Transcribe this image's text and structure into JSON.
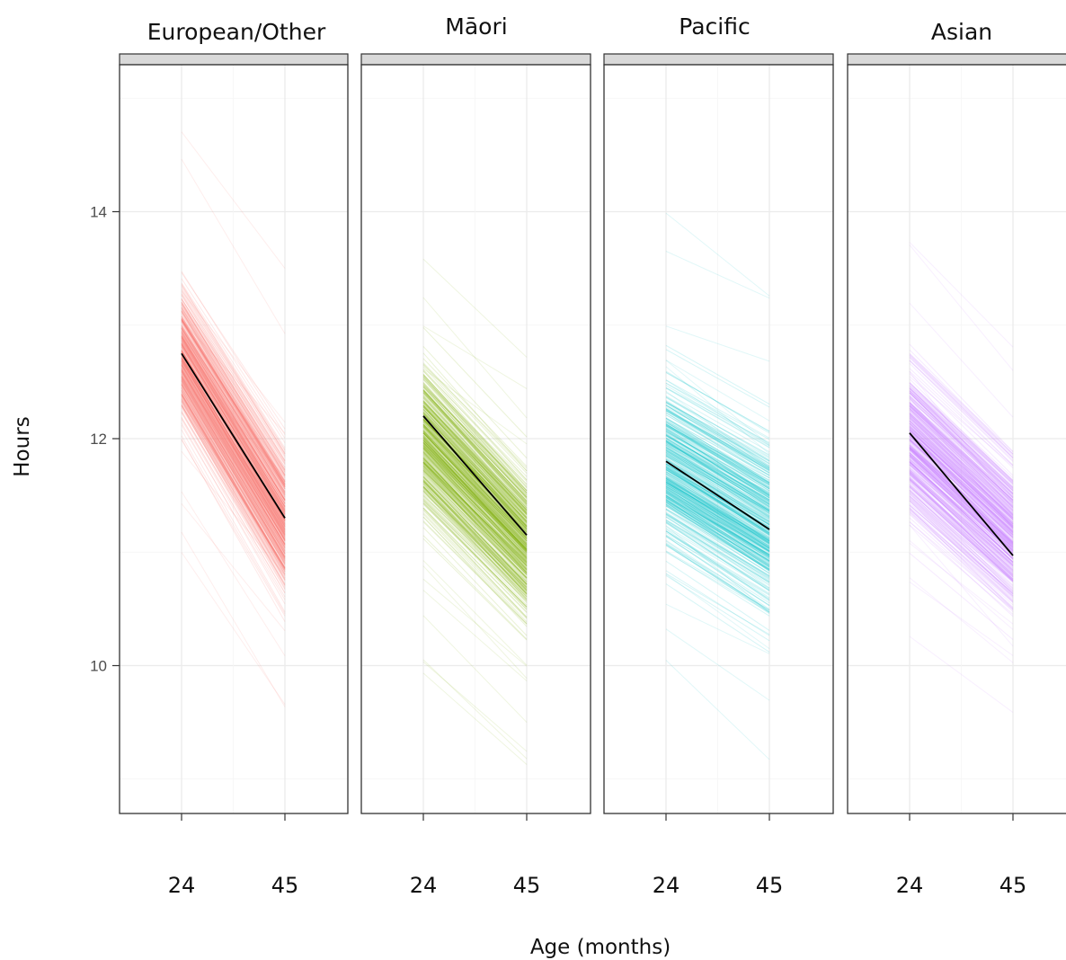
{
  "chart_data": {
    "type": "line",
    "xlabel": "Age (months)",
    "ylabel": "Hours",
    "x_ticks": [
      24,
      45
    ],
    "y_ticks": [
      10,
      12,
      14
    ],
    "ylim": [
      8.9,
      15.3
    ],
    "grid": true,
    "facets": [
      {
        "title": "European/Other",
        "color": "#F8766D",
        "mean": {
          "x": [
            24,
            45
          ],
          "y": [
            12.75,
            11.3
          ]
        },
        "spread_24": [
          11.8,
          13.7
        ],
        "spread_45": [
          10.2,
          12.3
        ],
        "extreme_24": [
          10.6,
          14.9
        ],
        "extreme_45": [
          9.3,
          13.6
        ]
      },
      {
        "title": "Māori",
        "color": "#7CAE00",
        "mean": {
          "x": [
            24,
            45
          ],
          "y": [
            12.2,
            11.15
          ]
        },
        "spread_24": [
          10.9,
          13.1
        ],
        "spread_45": [
          10.0,
          12.1
        ],
        "extreme_24": [
          9.8,
          13.9
        ],
        "extreme_45": [
          9.0,
          13.1
        ]
      },
      {
        "title": "Pacific",
        "color": "#00BFC4",
        "mean": {
          "x": [
            24,
            45
          ],
          "y": [
            11.8,
            11.2
          ]
        },
        "spread_24": [
          10.5,
          13.0
        ],
        "spread_45": [
          9.9,
          12.5
        ],
        "extreme_24": [
          9.8,
          14.1
        ],
        "extreme_45": [
          9.2,
          13.5
        ]
      },
      {
        "title": "Asian",
        "color": "#C77CFF",
        "mean": {
          "x": [
            24,
            45
          ],
          "y": [
            12.05,
            10.97
          ]
        },
        "spread_24": [
          10.9,
          13.1
        ],
        "spread_45": [
          10.1,
          12.2
        ],
        "extreme_24": [
          10.2,
          13.9
        ],
        "extreme_45": [
          9.3,
          12.9
        ]
      }
    ]
  }
}
